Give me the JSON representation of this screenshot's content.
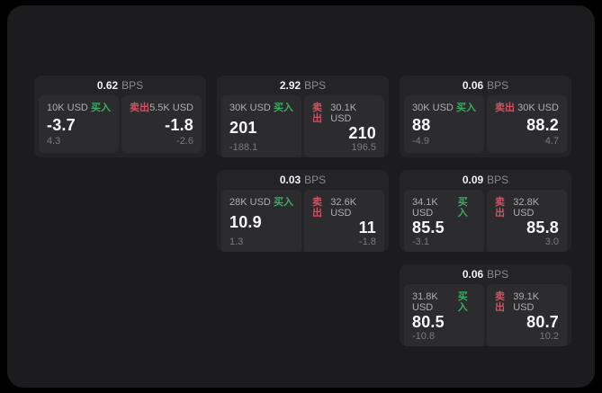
{
  "labels": {
    "bps_unit": "BPS",
    "buy": "买入",
    "sell": "卖出"
  },
  "colors": {
    "buy": "#3cab63",
    "sell": "#cf5262",
    "panel_background": "#1c1c1e",
    "card_background": "#242428",
    "tile_background": "#2c2c2f"
  },
  "cards": [
    {
      "bps": "0.62",
      "buy": {
        "size": "10K USD",
        "value": "-3.7",
        "delta": "4.3"
      },
      "sell": {
        "size": "5.5K USD",
        "value": "-1.8",
        "delta": "-2.6"
      }
    },
    {
      "bps": "2.92",
      "buy": {
        "size": "30K USD",
        "value": "201",
        "delta": "-188.1"
      },
      "sell": {
        "size": "30.1K USD",
        "value": "210",
        "delta": "196.5"
      }
    },
    {
      "bps": "0.06",
      "buy": {
        "size": "30K USD",
        "value": "88",
        "delta": "-4.9"
      },
      "sell": {
        "size": "30K USD",
        "value": "88.2",
        "delta": "4.7"
      }
    },
    {
      "bps": "0.03",
      "buy": {
        "size": "28K USD",
        "value": "10.9",
        "delta": "1.3"
      },
      "sell": {
        "size": "32.6K USD",
        "value": "11",
        "delta": "-1.8"
      }
    },
    {
      "bps": "0.09",
      "buy": {
        "size": "34.1K USD",
        "value": "85.5",
        "delta": "-3.1"
      },
      "sell": {
        "size": "32.8K USD",
        "value": "85.8",
        "delta": "3.0"
      }
    },
    {
      "bps": "0.06",
      "buy": {
        "size": "31.8K USD",
        "value": "80.5",
        "delta": "-10.8"
      },
      "sell": {
        "size": "39.1K USD",
        "value": "80.7",
        "delta": "10.2"
      }
    }
  ]
}
